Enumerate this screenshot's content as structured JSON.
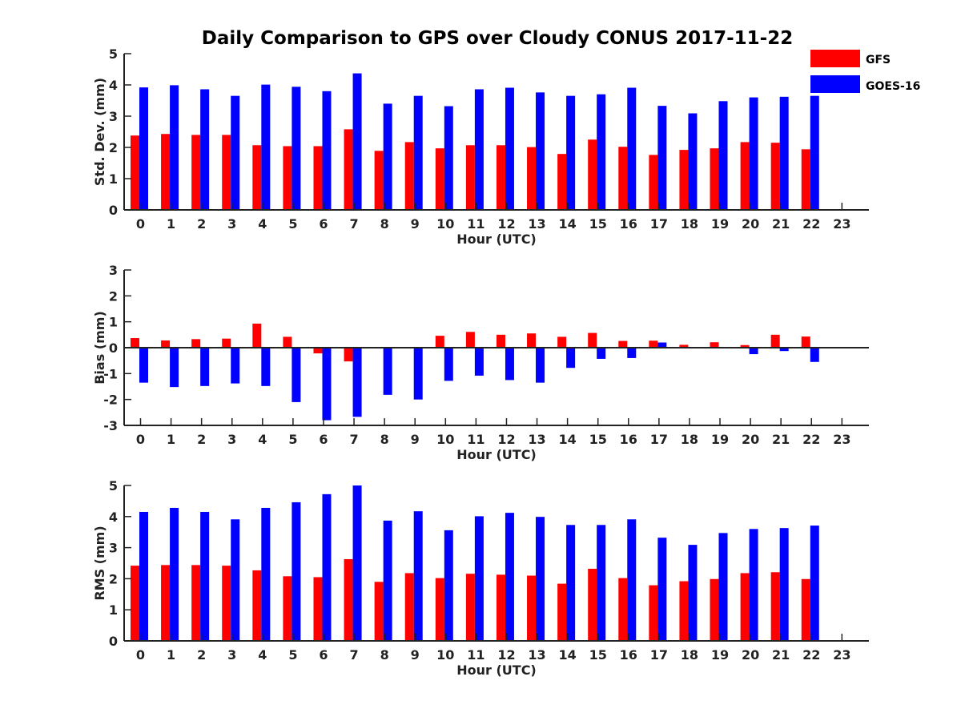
{
  "chart_data": {
    "type": "bar",
    "title": "Daily Comparison to GPS over Cloudy CONUS 2017-11-22",
    "categories": [
      "0",
      "1",
      "2",
      "3",
      "4",
      "5",
      "6",
      "7",
      "8",
      "9",
      "10",
      "11",
      "12",
      "13",
      "14",
      "15",
      "16",
      "17",
      "18",
      "19",
      "20",
      "21",
      "22",
      "23"
    ],
    "legend": {
      "placement": "top-right",
      "entries": [
        {
          "name": "GFS",
          "color": "#ff0000"
        },
        {
          "name": "GOES-16",
          "color": "#0000ff"
        }
      ]
    },
    "panels": [
      {
        "ylabel": "Std. Dev. (mm)",
        "xlabel": "Hour (UTC)",
        "ylim": [
          0,
          5
        ],
        "yticks": [
          "0",
          "1",
          "2",
          "3",
          "4",
          "5"
        ],
        "series": [
          {
            "name": "GFS",
            "color": "#ff0000",
            "values": [
              2.38,
              2.43,
              2.4,
              2.4,
              2.07,
              2.04,
              2.04,
              2.58,
              1.89,
              2.17,
              1.97,
              2.07,
              2.07,
              2.01,
              1.79,
              2.25,
              2.02,
              1.76,
              1.92,
              1.97,
              2.17,
              2.15,
              1.94,
              null
            ]
          },
          {
            "name": "GOES-16",
            "color": "#0000ff",
            "values": [
              3.92,
              3.99,
              3.86,
              3.65,
              4.01,
              3.94,
              3.8,
              4.37,
              3.4,
              3.65,
              3.32,
              3.86,
              3.91,
              3.76,
              3.65,
              3.7,
              3.91,
              3.33,
              3.09,
              3.48,
              3.6,
              3.62,
              3.65,
              null
            ]
          }
        ]
      },
      {
        "ylabel": "Bias (mm)",
        "xlabel": "Hour (UTC)",
        "ylim": [
          -3,
          3
        ],
        "yticks": [
          "-3",
          "-2",
          "-1",
          "0",
          "1",
          "2",
          "3"
        ],
        "series": [
          {
            "name": "GFS",
            "color": "#ff0000",
            "values": [
              0.37,
              0.28,
              0.33,
              0.35,
              0.93,
              0.42,
              -0.22,
              -0.53,
              0.02,
              0.0,
              0.46,
              0.61,
              0.5,
              0.55,
              0.42,
              0.57,
              0.26,
              0.27,
              0.11,
              0.21,
              0.1,
              0.5,
              0.43,
              null
            ]
          },
          {
            "name": "GOES-16",
            "color": "#0000ff",
            "values": [
              -1.35,
              -1.52,
              -1.48,
              -1.38,
              -1.48,
              -2.1,
              -2.8,
              -2.67,
              -1.82,
              -2.0,
              -1.28,
              -1.08,
              -1.25,
              -1.35,
              -0.78,
              -0.43,
              -0.4,
              0.2,
              0.0,
              0.0,
              -0.25,
              -0.13,
              -0.55,
              null
            ]
          }
        ]
      },
      {
        "ylabel": "RMS (mm)",
        "xlabel": "Hour (UTC)",
        "ylim": [
          0,
          5
        ],
        "yticks": [
          "0",
          "1",
          "2",
          "3",
          "4",
          "5"
        ],
        "series": [
          {
            "name": "GFS",
            "color": "#ff0000",
            "values": [
              2.42,
              2.44,
              2.44,
              2.42,
              2.27,
              2.08,
              2.05,
              2.63,
              1.9,
              2.18,
              2.02,
              2.16,
              2.13,
              2.1,
              1.84,
              2.32,
              2.02,
              1.79,
              1.92,
              1.99,
              2.18,
              2.21,
              1.99,
              null
            ]
          },
          {
            "name": "GOES-16",
            "color": "#0000ff",
            "values": [
              4.15,
              4.28,
              4.15,
              3.91,
              4.28,
              4.46,
              4.72,
              5.0,
              3.87,
              4.17,
              3.56,
              4.01,
              4.12,
              3.99,
              3.73,
              3.73,
              3.91,
              3.32,
              3.09,
              3.47,
              3.6,
              3.63,
              3.71,
              null
            ]
          }
        ]
      }
    ]
  }
}
